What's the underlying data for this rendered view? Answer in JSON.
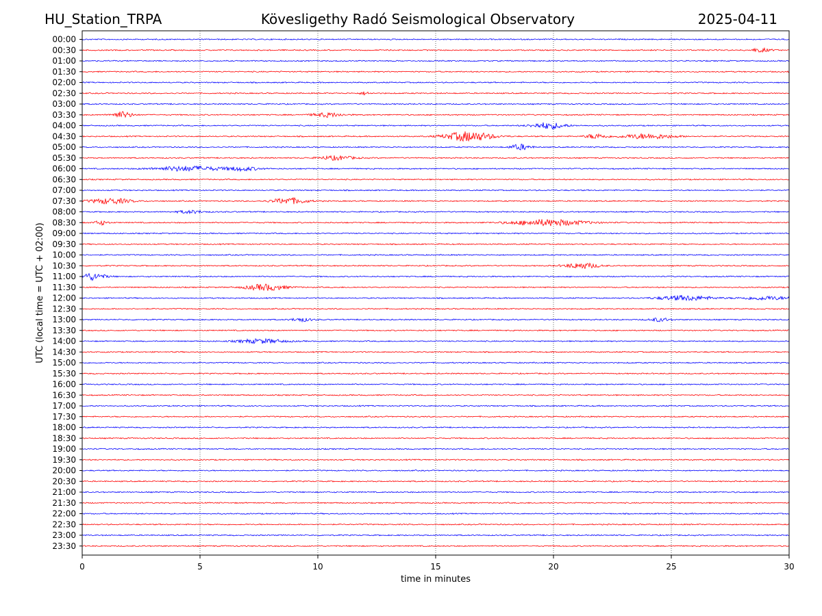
{
  "header": {
    "station": "HU_Station_TRPA",
    "observatory": "Kövesligethy Radó Seismological Observatory",
    "date": "2025-04-11"
  },
  "chart_data": {
    "type": "line",
    "title": "Kövesligethy Radó Seismological Observatory",
    "xlabel": "time in minutes",
    "ylabel": "UTC (local time = UTC + 02:00)",
    "xlim": [
      0,
      30
    ],
    "x_ticks": [
      "0",
      "5",
      "10",
      "15",
      "20",
      "25",
      "30"
    ],
    "grid": "vertical dotted lines at 5-minute intervals",
    "colors": {
      "even_rows": "#0000ff",
      "odd_rows": "#ff0000",
      "grid": "#000000"
    },
    "row_labels": [
      "00:00",
      "00:30",
      "01:00",
      "01:30",
      "02:00",
      "02:30",
      "03:00",
      "03:30",
      "04:00",
      "04:30",
      "05:00",
      "05:30",
      "06:00",
      "06:30",
      "07:00",
      "07:30",
      "08:00",
      "08:30",
      "09:00",
      "09:30",
      "10:00",
      "10:30",
      "11:00",
      "11:30",
      "12:00",
      "12:30",
      "13:00",
      "13:30",
      "14:00",
      "14:30",
      "15:00",
      "15:30",
      "16:00",
      "16:30",
      "17:00",
      "17:30",
      "18:00",
      "18:30",
      "19:00",
      "19:30",
      "20:00",
      "20:30",
      "21:00",
      "21:30",
      "22:00",
      "22:30",
      "23:00",
      "23:30"
    ],
    "events": [
      {
        "row": "00:30",
        "minute": 28.8,
        "duration": 0.6,
        "amplitude": 0.5
      },
      {
        "row": "02:30",
        "minute": 12.0,
        "duration": 0.3,
        "amplitude": 0.4
      },
      {
        "row": "03:30",
        "minute": 1.7,
        "duration": 0.6,
        "amplitude": 0.9
      },
      {
        "row": "03:30",
        "minute": 10.4,
        "duration": 0.9,
        "amplitude": 0.6
      },
      {
        "row": "04:00",
        "minute": 19.8,
        "duration": 1.0,
        "amplitude": 0.9
      },
      {
        "row": "04:30",
        "minute": 16.4,
        "duration": 1.4,
        "amplitude": 1.4
      },
      {
        "row": "04:30",
        "minute": 21.8,
        "duration": 0.6,
        "amplitude": 0.7
      },
      {
        "row": "04:30",
        "minute": 24.0,
        "duration": 1.6,
        "amplitude": 0.7
      },
      {
        "row": "05:00",
        "minute": 18.6,
        "duration": 0.6,
        "amplitude": 0.8
      },
      {
        "row": "05:30",
        "minute": 10.8,
        "duration": 1.0,
        "amplitude": 0.6
      },
      {
        "row": "06:00",
        "minute": 4.5,
        "duration": 2.0,
        "amplitude": 0.7
      },
      {
        "row": "06:00",
        "minute": 6.8,
        "duration": 1.0,
        "amplitude": 0.5
      },
      {
        "row": "07:30",
        "minute": 1.2,
        "duration": 1.2,
        "amplitude": 0.8
      },
      {
        "row": "07:30",
        "minute": 8.8,
        "duration": 1.0,
        "amplitude": 0.9
      },
      {
        "row": "08:00",
        "minute": 4.6,
        "duration": 0.8,
        "amplitude": 0.4
      },
      {
        "row": "08:30",
        "minute": 0.8,
        "duration": 0.4,
        "amplitude": 0.6
      },
      {
        "row": "08:30",
        "minute": 19.8,
        "duration": 2.2,
        "amplitude": 0.9
      },
      {
        "row": "10:30",
        "minute": 21.2,
        "duration": 1.0,
        "amplitude": 0.8
      },
      {
        "row": "11:00",
        "minute": 0.4,
        "duration": 0.8,
        "amplitude": 1.0
      },
      {
        "row": "11:30",
        "minute": 7.8,
        "duration": 1.2,
        "amplitude": 0.9
      },
      {
        "row": "12:00",
        "minute": 25.6,
        "duration": 1.6,
        "amplitude": 0.7
      },
      {
        "row": "12:00",
        "minute": 29.0,
        "duration": 1.4,
        "amplitude": 0.5
      },
      {
        "row": "13:00",
        "minute": 9.3,
        "duration": 0.6,
        "amplitude": 0.5
      },
      {
        "row": "13:00",
        "minute": 24.5,
        "duration": 0.6,
        "amplitude": 0.5
      },
      {
        "row": "14:00",
        "minute": 7.6,
        "duration": 1.4,
        "amplitude": 0.6
      }
    ]
  }
}
